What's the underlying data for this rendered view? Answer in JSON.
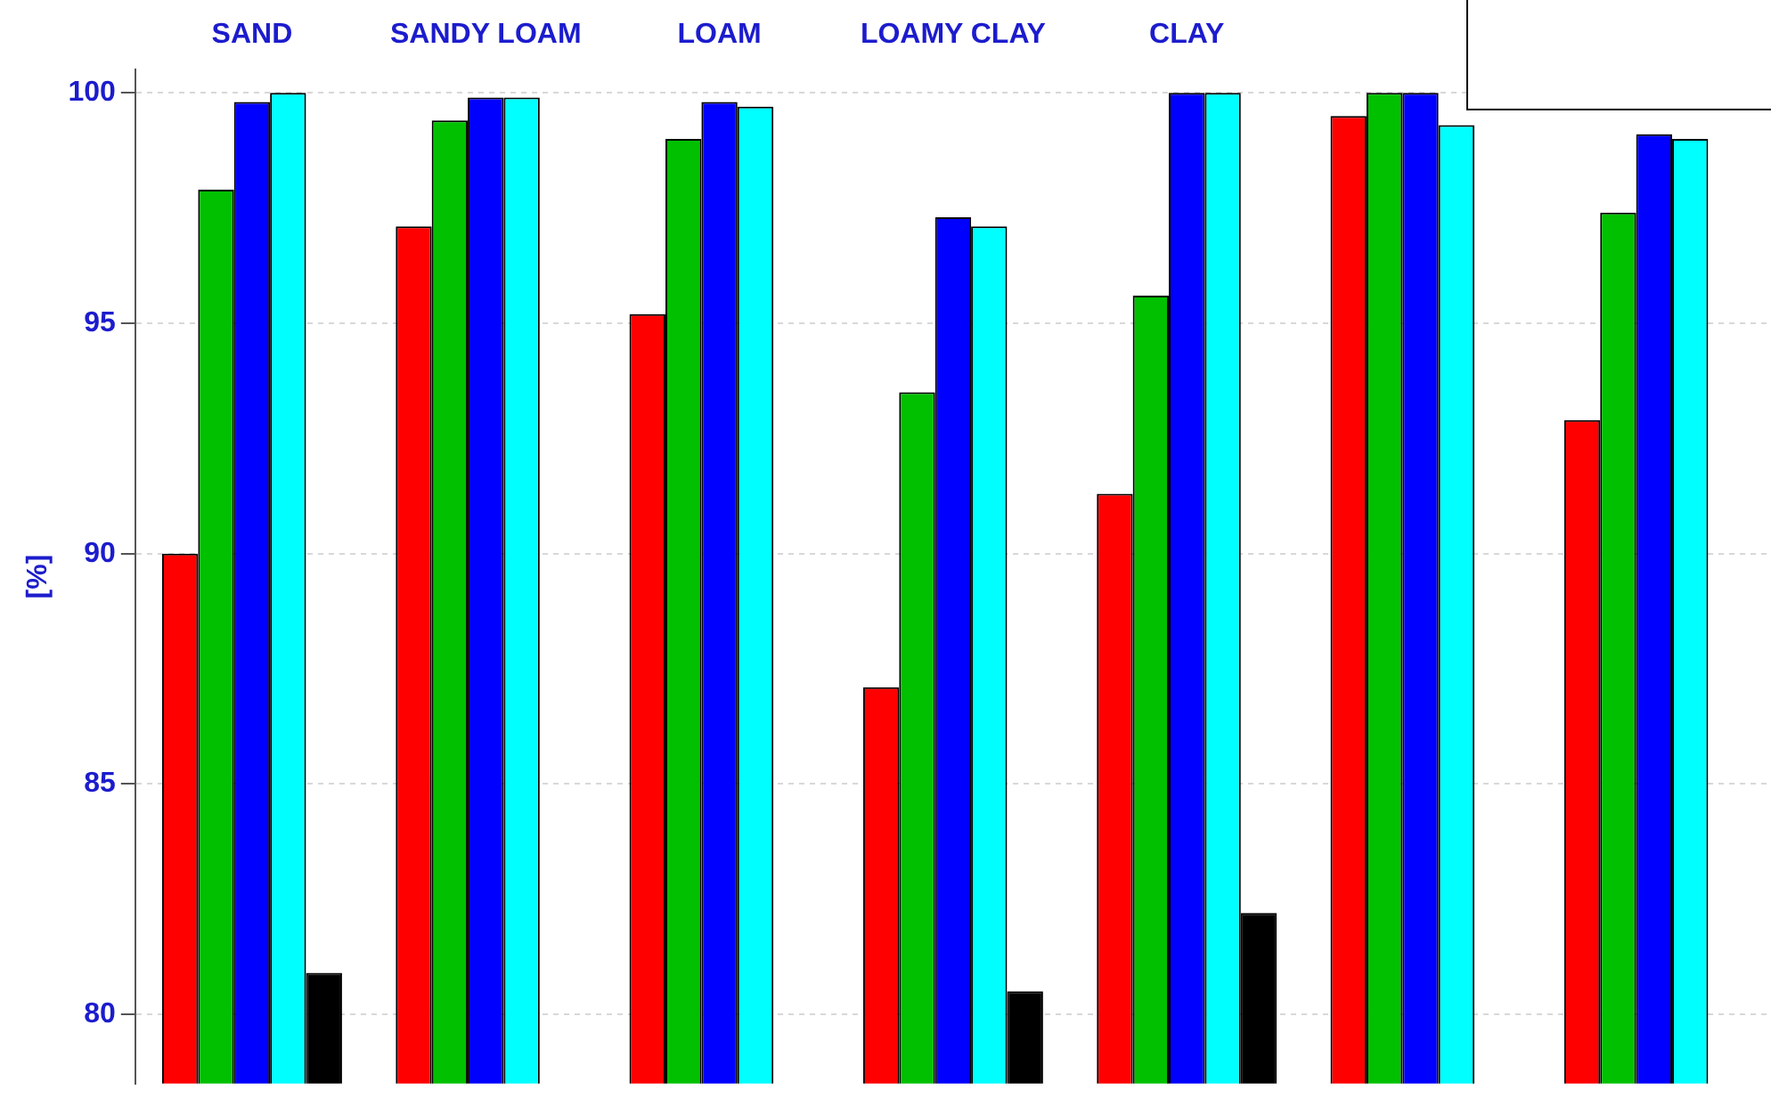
{
  "chart_data": {
    "type": "bar",
    "ylabel": "[%]",
    "categories": [
      "SAND",
      "SANDY LOAM",
      "LOAM",
      "LOAMY CLAY",
      "CLAY",
      null,
      null
    ],
    "series": [
      {
        "color": "#ff0000",
        "values": [
          90.0,
          97.1,
          95.2,
          87.1,
          91.3,
          99.5,
          92.9
        ]
      },
      {
        "color": "#00c000",
        "values": [
          97.9,
          99.4,
          99.0,
          93.5,
          95.6,
          100.0,
          97.4
        ]
      },
      {
        "color": "#0000ff",
        "values": [
          99.8,
          99.9,
          99.8,
          97.3,
          100.0,
          100.0,
          99.1
        ]
      },
      {
        "color": "#00ffff",
        "values": [
          100.0,
          99.9,
          99.7,
          97.1,
          100.0,
          99.3,
          99.0
        ]
      },
      {
        "color": "#000000",
        "values": [
          80.9,
          null,
          null,
          80.5,
          82.2,
          null,
          null
        ]
      }
    ],
    "ylim": [
      78.5,
      100.5
    ],
    "yticks": [
      80,
      85,
      90,
      95,
      100
    ],
    "grid": "y"
  }
}
